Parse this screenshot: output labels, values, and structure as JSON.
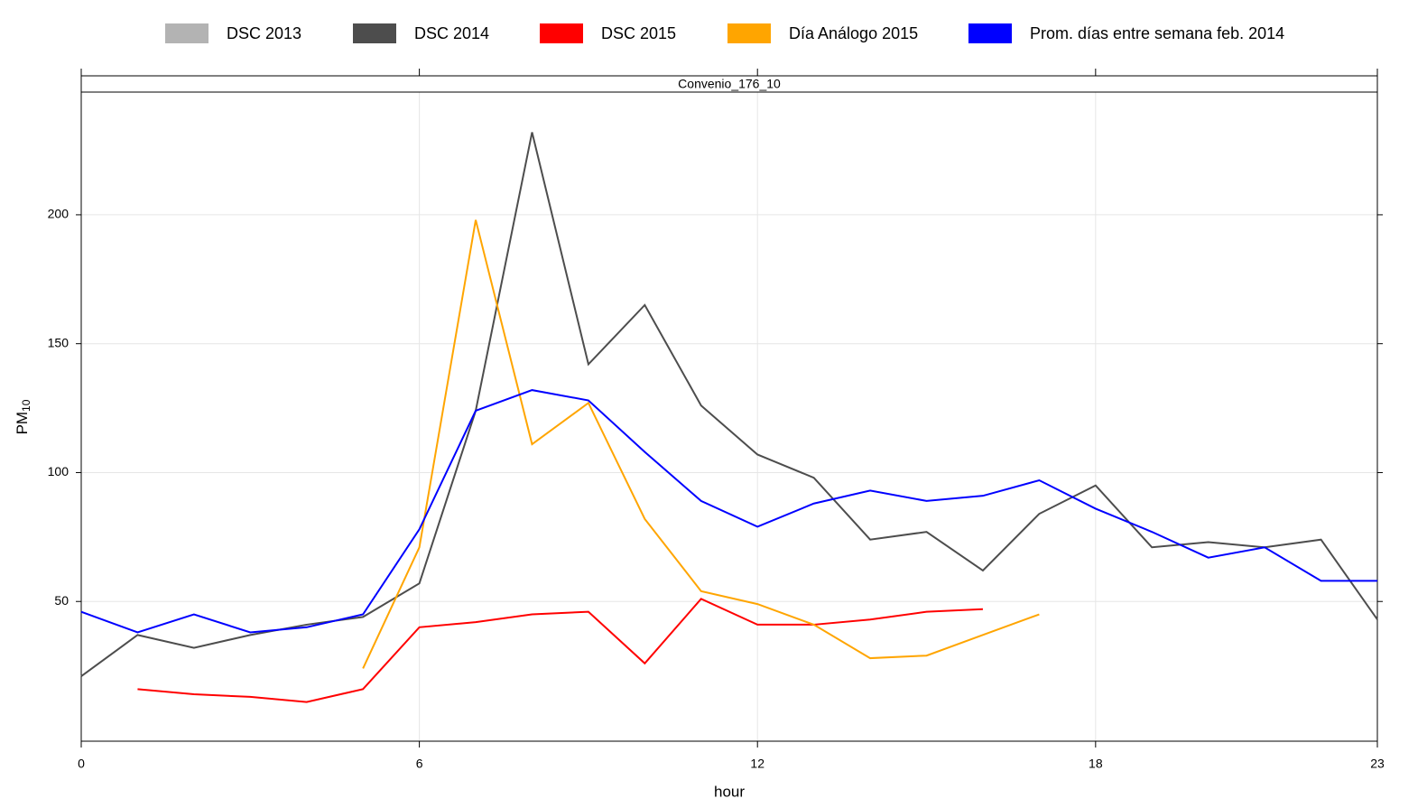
{
  "chart_data": {
    "type": "line",
    "strip": "Convenio_176_10",
    "xlabel": "hour",
    "ylabel": "PM",
    "ylabel_sub": "10",
    "x": [
      0,
      1,
      2,
      3,
      4,
      5,
      6,
      7,
      8,
      9,
      10,
      11,
      12,
      13,
      14,
      15,
      16,
      17,
      18,
      19,
      20,
      21,
      22,
      23
    ],
    "xlim": [
      0,
      23
    ],
    "xticks": [
      0,
      6,
      12,
      18,
      23
    ],
    "ylim": [
      -4.2,
      247.6
    ],
    "yticks": [
      50,
      100,
      150,
      200
    ],
    "grid": true,
    "legend": "top",
    "series": [
      {
        "name": "DSC 2013",
        "color": "#b3b3b3",
        "values": [
          null,
          null,
          null,
          null,
          null,
          null,
          null,
          null,
          null,
          null,
          null,
          null,
          null,
          null,
          null,
          null,
          null,
          null,
          null,
          null,
          null,
          null,
          null,
          null
        ]
      },
      {
        "name": "DSC 2014",
        "color": "#4d4d4d",
        "values": [
          21,
          37,
          32,
          37,
          41,
          44,
          57,
          124,
          232,
          142,
          165,
          126,
          107,
          98,
          74,
          77,
          62,
          84,
          95,
          71,
          73,
          71,
          74,
          43
        ]
      },
      {
        "name": "DSC 2015",
        "color": "#ff0000",
        "values": [
          null,
          16,
          14,
          13,
          11,
          16,
          40,
          42,
          45,
          46,
          26,
          51,
          41,
          41,
          43,
          46,
          47,
          null,
          null,
          null,
          null,
          null,
          null,
          null
        ]
      },
      {
        "name": "Día Análogo 2015",
        "color": "#ffa500",
        "values": [
          null,
          null,
          null,
          null,
          null,
          24,
          71,
          198,
          111,
          127,
          82,
          54,
          49,
          41,
          28,
          29,
          37,
          45,
          null,
          null,
          null,
          null,
          null,
          null
        ]
      },
      {
        "name": "Prom. días entre semana feb. 2014",
        "color": "#0000ff",
        "values": [
          46,
          38,
          45,
          38,
          40,
          45,
          78,
          124,
          132,
          128,
          108,
          89,
          79,
          88,
          93,
          89,
          91,
          97,
          86,
          77,
          67,
          71,
          58,
          58
        ]
      }
    ]
  }
}
